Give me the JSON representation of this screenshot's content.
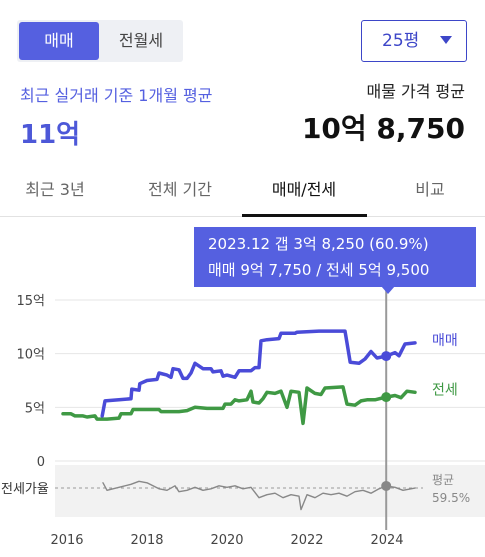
{
  "segment": {
    "options": [
      "매매",
      "전월세"
    ],
    "selected": 0
  },
  "size_select": {
    "value": "25평"
  },
  "summary": {
    "real_label": "최근 실거래 기준 1개월 평균",
    "real_value": "11억",
    "listing_label": "매물 가격 평균",
    "listing_value": "10억 8,750"
  },
  "tabs": [
    {
      "label": "최근 3년"
    },
    {
      "label": "전체 기간"
    },
    {
      "label": "매매/전세"
    },
    {
      "label": "비교"
    }
  ],
  "active_tab": 2,
  "tooltip": {
    "line1": "2023.12  갭 3억 8,250 (60.9%)",
    "line2": "매매 9억 7,750 / 전세 5억 9,500"
  },
  "colors": {
    "sale": "#4a4bd8",
    "jeonse": "#3f9944",
    "ratio": "#888888",
    "accent": "#5560e0"
  },
  "chart_data": [
    {
      "type": "line",
      "x_unit": "year",
      "xlim": [
        2015.7,
        2024.9
      ],
      "ylim": [
        0,
        15
      ],
      "yticks": [
        "0",
        "5억",
        "10억",
        "15억"
      ],
      "xticks": [
        "2016",
        "2018",
        "2020",
        "2022",
        "2024"
      ],
      "grid": true,
      "series": [
        {
          "name": "매매",
          "points": [
            [
              2016.88,
              4.2
            ],
            [
              2016.95,
              5.6
            ],
            [
              2017.3,
              5.7
            ],
            [
              2017.6,
              5.8
            ],
            [
              2017.62,
              6.7
            ],
            [
              2017.8,
              6.6
            ],
            [
              2017.82,
              7.2
            ],
            [
              2018.0,
              7.5
            ],
            [
              2018.25,
              7.6
            ],
            [
              2018.3,
              8.2
            ],
            [
              2018.5,
              8.0
            ],
            [
              2018.6,
              7.8
            ],
            [
              2018.65,
              8.6
            ],
            [
              2018.8,
              8.5
            ],
            [
              2018.9,
              7.7
            ],
            [
              2019.0,
              7.7
            ],
            [
              2019.1,
              8.2
            ],
            [
              2019.2,
              9.1
            ],
            [
              2019.4,
              8.6
            ],
            [
              2019.6,
              8.6
            ],
            [
              2019.65,
              8.3
            ],
            [
              2019.85,
              8.4
            ],
            [
              2019.9,
              7.9
            ],
            [
              2020.0,
              8.0
            ],
            [
              2020.2,
              7.8
            ],
            [
              2020.3,
              8.4
            ],
            [
              2020.6,
              8.4
            ],
            [
              2020.7,
              8.7
            ],
            [
              2020.8,
              8.7
            ],
            [
              2020.85,
              11.2
            ],
            [
              2021.0,
              11.3
            ],
            [
              2021.3,
              11.4
            ],
            [
              2021.35,
              11.9
            ],
            [
              2021.7,
              11.9
            ],
            [
              2021.75,
              12.0
            ],
            [
              2022.3,
              12.1
            ],
            [
              2022.95,
              12.1
            ],
            [
              2023.0,
              11.0
            ],
            [
              2023.08,
              9.2
            ],
            [
              2023.3,
              9.1
            ],
            [
              2023.45,
              9.5
            ],
            [
              2023.6,
              10.2
            ],
            [
              2023.75,
              9.6
            ],
            [
              2023.98,
              9.775
            ],
            [
              2024.2,
              10.1
            ],
            [
              2024.3,
              9.8
            ],
            [
              2024.45,
              10.9
            ],
            [
              2024.7,
              11.0
            ]
          ]
        },
        {
          "name": "전세",
          "points": [
            [
              2015.9,
              4.4
            ],
            [
              2016.1,
              4.4
            ],
            [
              2016.2,
              4.2
            ],
            [
              2016.4,
              4.2
            ],
            [
              2016.5,
              4.1
            ],
            [
              2016.7,
              4.2
            ],
            [
              2016.75,
              3.9
            ],
            [
              2017.0,
              3.9
            ],
            [
              2017.3,
              4.0
            ],
            [
              2017.35,
              4.4
            ],
            [
              2017.6,
              4.4
            ],
            [
              2017.65,
              4.8
            ],
            [
              2018.3,
              4.8
            ],
            [
              2018.35,
              4.6
            ],
            [
              2018.8,
              4.6
            ],
            [
              2019.0,
              4.7
            ],
            [
              2019.2,
              5.0
            ],
            [
              2019.5,
              4.9
            ],
            [
              2019.9,
              4.9
            ],
            [
              2019.95,
              5.3
            ],
            [
              2020.1,
              5.3
            ],
            [
              2020.2,
              5.7
            ],
            [
              2020.3,
              5.6
            ],
            [
              2020.5,
              5.7
            ],
            [
              2020.6,
              6.5
            ],
            [
              2020.65,
              5.5
            ],
            [
              2020.8,
              5.4
            ],
            [
              2020.9,
              5.8
            ],
            [
              2021.0,
              6.4
            ],
            [
              2021.2,
              6.3
            ],
            [
              2021.35,
              6.5
            ],
            [
              2021.5,
              5.0
            ],
            [
              2021.6,
              6.5
            ],
            [
              2021.8,
              6.4
            ],
            [
              2021.9,
              3.5
            ],
            [
              2022.0,
              6.8
            ],
            [
              2022.2,
              6.3
            ],
            [
              2022.35,
              6.2
            ],
            [
              2022.45,
              6.8
            ],
            [
              2022.9,
              6.9
            ],
            [
              2023.0,
              5.3
            ],
            [
              2023.2,
              5.2
            ],
            [
              2023.35,
              5.6
            ],
            [
              2023.5,
              5.7
            ],
            [
              2023.7,
              5.7
            ],
            [
              2023.98,
              5.95
            ],
            [
              2024.2,
              6.1
            ],
            [
              2024.35,
              5.9
            ],
            [
              2024.5,
              6.5
            ],
            [
              2024.7,
              6.4
            ]
          ]
        },
        {
          "name": "전세가율",
          "points": [
            [
              2016.9,
              63
            ],
            [
              2017.0,
              58
            ],
            [
              2017.3,
              60
            ],
            [
              2017.6,
              62
            ],
            [
              2017.8,
              64
            ],
            [
              2018.0,
              63
            ],
            [
              2018.3,
              59
            ],
            [
              2018.5,
              58
            ],
            [
              2018.7,
              61
            ],
            [
              2018.8,
              57
            ],
            [
              2019.0,
              58
            ],
            [
              2019.2,
              60
            ],
            [
              2019.4,
              58
            ],
            [
              2019.6,
              59
            ],
            [
              2019.8,
              61
            ],
            [
              2020.0,
              60
            ],
            [
              2020.2,
              61
            ],
            [
              2020.4,
              59
            ],
            [
              2020.6,
              60
            ],
            [
              2020.8,
              53
            ],
            [
              2021.0,
              55
            ],
            [
              2021.2,
              56
            ],
            [
              2021.4,
              53
            ],
            [
              2021.6,
              55
            ],
            [
              2021.8,
              54
            ],
            [
              2021.85,
              45
            ],
            [
              2022.0,
              55
            ],
            [
              2022.2,
              53
            ],
            [
              2022.4,
              56
            ],
            [
              2022.6,
              55
            ],
            [
              2022.8,
              56
            ],
            [
              2023.0,
              54
            ],
            [
              2023.2,
              57
            ],
            [
              2023.4,
              58
            ],
            [
              2023.6,
              56
            ],
            [
              2023.8,
              59
            ],
            [
              2023.98,
              60.9
            ],
            [
              2024.2,
              60
            ],
            [
              2024.4,
              58
            ],
            [
              2024.7,
              59.5
            ]
          ]
        }
      ],
      "ratio_label": "전세가율",
      "ratio_average": {
        "label": "평균",
        "value": "59.5%",
        "y": 59.5
      },
      "ratio_ylim": [
        40,
        75
      ],
      "series_end_labels": [
        "매매",
        "전세"
      ],
      "crosshair_x": 2023.98,
      "crosshair_values": {
        "sale": 9.775,
        "jeonse": 5.95,
        "ratio": 60.9
      }
    }
  ]
}
